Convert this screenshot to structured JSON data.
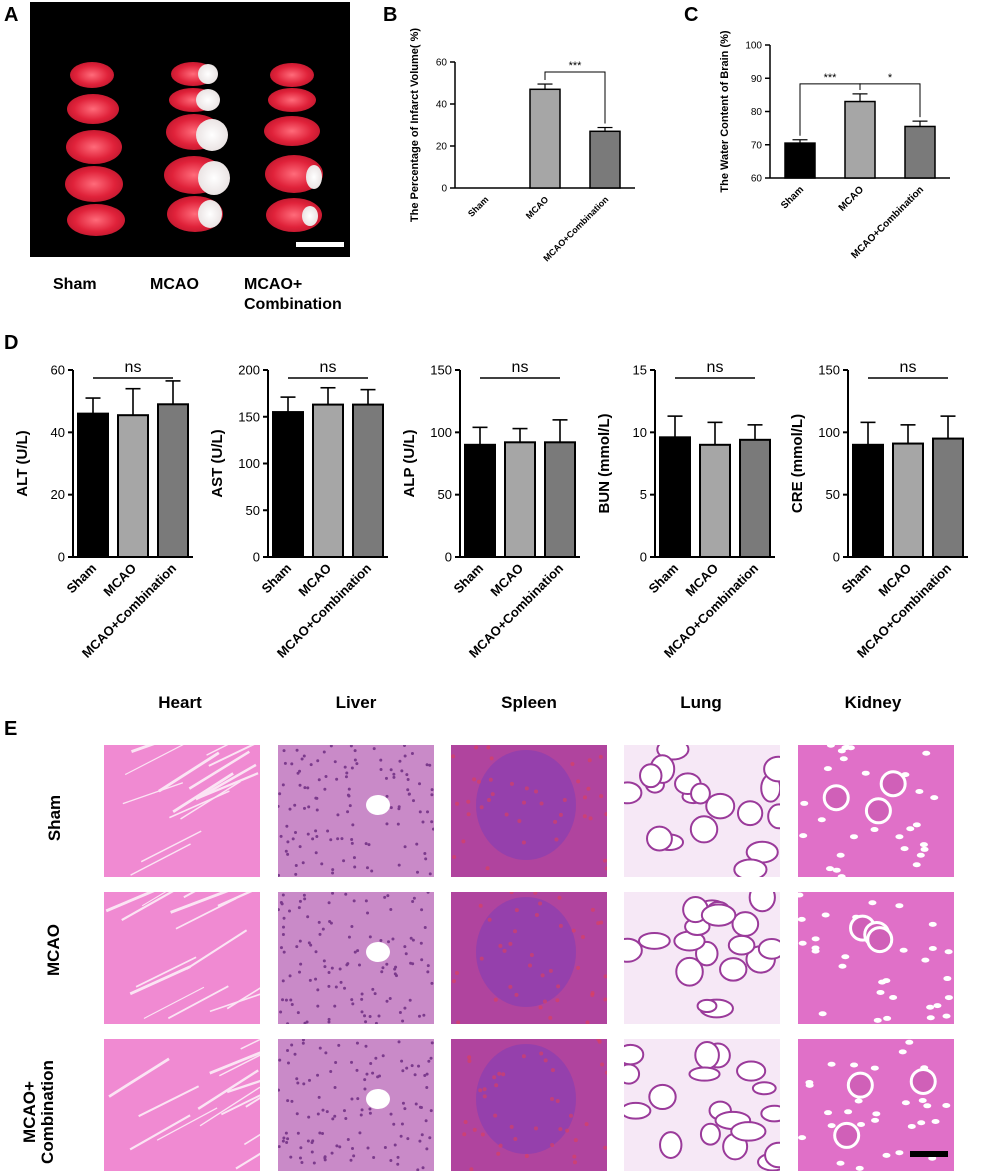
{
  "panels": {
    "A": "A",
    "B": "B",
    "C": "C",
    "D": "D",
    "E": "E"
  },
  "panel_a": {
    "labels": [
      "Sham",
      "MCAO",
      "MCAO+",
      "Combination"
    ]
  },
  "panel_e": {
    "organs": [
      "Heart",
      "Liver",
      "Spleen",
      "Lung",
      "Kidney"
    ],
    "rows": [
      "Sham",
      "MCAO",
      "MCAO+",
      "Combination"
    ]
  },
  "colors": {
    "sham": "#000000",
    "mcao": "#a6a6a6",
    "combo": "#7a7a7a",
    "he_pink": "#e98fcf",
    "he_purple": "#8c3fb0"
  },
  "chart_data": [
    {
      "id": "B",
      "type": "bar",
      "categories": [
        "Sham",
        "MCAO",
        "MCAO+Combination"
      ],
      "values": [
        0,
        47,
        27
      ],
      "errors": [
        0,
        2.5,
        1.8
      ],
      "ylabel": "The Percentage of Infarct Volume( %)",
      "ylim": [
        0,
        60
      ],
      "yticks": [
        0,
        20,
        40,
        60
      ],
      "sig": [
        {
          "from": 1,
          "to": 2,
          "label": "***"
        }
      ]
    },
    {
      "id": "C",
      "type": "bar",
      "categories": [
        "Sham",
        "MCAO",
        "MCAO+Combination"
      ],
      "values": [
        70.5,
        83,
        75.5
      ],
      "errors": [
        1,
        2.3,
        1.6
      ],
      "ylabel": "The Water Content of Brain (%)",
      "ylim": [
        60,
        100
      ],
      "yticks": [
        60,
        70,
        80,
        90,
        100
      ],
      "sig": [
        {
          "from": 0,
          "to": 1,
          "label": "***"
        },
        {
          "from": 1,
          "to": 2,
          "label": "*"
        }
      ]
    },
    {
      "id": "D1",
      "type": "bar",
      "categories": [
        "Sham",
        "MCAO",
        "MCAO+Combination"
      ],
      "values": [
        46,
        45.5,
        49
      ],
      "errors": [
        5,
        8.5,
        7.5
      ],
      "ylabel": "ALT (U/L)",
      "ylim": [
        0,
        60
      ],
      "yticks": [
        0,
        20,
        40,
        60
      ],
      "ns": "ns"
    },
    {
      "id": "D2",
      "type": "bar",
      "categories": [
        "Sham",
        "MCAO",
        "MCAO+Combination"
      ],
      "values": [
        155,
        163,
        163
      ],
      "errors": [
        16,
        18,
        16
      ],
      "ylabel": "AST (U/L)",
      "ylim": [
        0,
        200
      ],
      "yticks": [
        0,
        50,
        100,
        150,
        200
      ],
      "ns": "ns"
    },
    {
      "id": "D3",
      "type": "bar",
      "categories": [
        "Sham",
        "MCAO",
        "MCAO+Combination"
      ],
      "values": [
        90,
        92,
        92
      ],
      "errors": [
        14,
        11,
        18
      ],
      "ylabel": "ALP (U/L)",
      "ylim": [
        0,
        150
      ],
      "yticks": [
        0,
        50,
        100,
        150
      ],
      "ns": "ns"
    },
    {
      "id": "D4",
      "type": "bar",
      "categories": [
        "Sham",
        "MCAO",
        "MCAO+Combination"
      ],
      "values": [
        9.6,
        9.0,
        9.4
      ],
      "errors": [
        1.7,
        1.8,
        1.2
      ],
      "ylabel": "BUN (mmol/L)",
      "ylim": [
        0,
        15
      ],
      "yticks": [
        0,
        5,
        10,
        15
      ],
      "ns": "ns"
    },
    {
      "id": "D5",
      "type": "bar",
      "categories": [
        "Sham",
        "MCAO",
        "MCAO+Combination"
      ],
      "values": [
        90,
        91,
        95
      ],
      "errors": [
        18,
        15,
        18
      ],
      "ylabel": "CRE (mmol/L)",
      "ylim": [
        0,
        150
      ],
      "yticks": [
        0,
        50,
        100,
        150
      ],
      "ns": "ns"
    }
  ]
}
